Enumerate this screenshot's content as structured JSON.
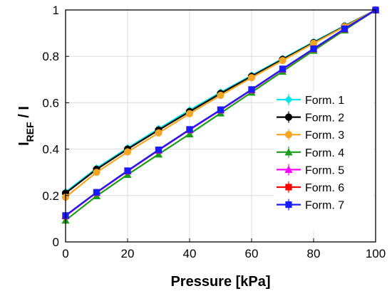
{
  "chart_data": {
    "type": "line",
    "title": "",
    "xlabel": "Pressure [kPa]",
    "ylabel_main": "I",
    "ylabel_sub": "REF",
    "ylabel_rest": " / I",
    "xlim": [
      0,
      100
    ],
    "ylim": [
      0,
      1
    ],
    "x_ticks": [
      0,
      20,
      40,
      60,
      80,
      100
    ],
    "y_ticks": [
      0,
      0.2,
      0.4,
      0.6,
      0.8,
      1
    ],
    "y_tick_labels": [
      "0",
      "0.2",
      "0.4",
      "0.6",
      "0.8",
      "1"
    ],
    "grid": true,
    "legend_position": "bottom-right",
    "x": [
      0,
      10,
      20,
      30,
      40,
      50,
      60,
      70,
      80,
      90,
      100
    ],
    "series": [
      {
        "name": "Form. 1",
        "color": "#00e5ee",
        "marker": "diamond",
        "values": [
          0.215,
          0.318,
          0.405,
          0.488,
          0.568,
          0.645,
          0.718,
          0.79,
          0.862,
          0.932,
          1.0
        ]
      },
      {
        "name": "Form. 2",
        "color": "#000000",
        "marker": "circle",
        "values": [
          0.21,
          0.313,
          0.4,
          0.482,
          0.562,
          0.64,
          0.714,
          0.787,
          0.859,
          0.93,
          1.0
        ]
      },
      {
        "name": "Form. 3",
        "color": "#f5a623",
        "marker": "circle",
        "values": [
          0.193,
          0.3,
          0.388,
          0.47,
          0.553,
          0.632,
          0.708,
          0.782,
          0.856,
          0.928,
          1.0
        ]
      },
      {
        "name": "Form. 4",
        "color": "#1a9e1a",
        "marker": "triangle",
        "values": [
          0.093,
          0.198,
          0.29,
          0.378,
          0.465,
          0.555,
          0.645,
          0.735,
          0.825,
          0.913,
          1.0
        ]
      },
      {
        "name": "Form. 5",
        "color": "#ff00ff",
        "marker": "triangle",
        "values": [
          0.112,
          0.212,
          0.305,
          0.395,
          0.483,
          0.568,
          0.655,
          0.744,
          0.832,
          0.918,
          1.0
        ]
      },
      {
        "name": "Form. 6",
        "color": "#ff0000",
        "marker": "square",
        "values": [
          0.113,
          0.213,
          0.306,
          0.396,
          0.484,
          0.569,
          0.656,
          0.745,
          0.832,
          0.918,
          1.0
        ]
      },
      {
        "name": "Form. 7",
        "color": "#1a1aff",
        "marker": "square",
        "values": [
          0.114,
          0.214,
          0.307,
          0.397,
          0.485,
          0.57,
          0.657,
          0.746,
          0.833,
          0.919,
          1.0
        ]
      }
    ]
  }
}
